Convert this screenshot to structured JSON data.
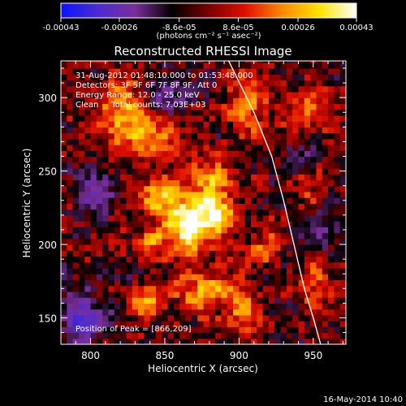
{
  "chart_data": {
    "type": "heatmap",
    "title": "Reconstructed RHESSI Image",
    "xlabel": "Heliocentric X (arcsec)",
    "ylabel": "Heliocentric Y (arcsec)",
    "xlim": [
      780,
      972
    ],
    "ylim": [
      132,
      325
    ],
    "x_ticks": [
      "800",
      "850",
      "900",
      "950"
    ],
    "y_ticks": [
      "150",
      "200",
      "250",
      "300"
    ],
    "colorbar": {
      "range": [
        -0.00043,
        0.00043
      ],
      "tick_labels": [
        "-0.00043",
        "-0.00026",
        "-8.6e-05",
        "8.6e-05",
        "0.00026",
        "0.00043"
      ],
      "unit_label": "(photons cm⁻² s⁻¹ asec⁻²)",
      "colors": [
        "#0a14ff",
        "#4b2bd0",
        "#7a2f9a",
        "#000000",
        "#7a0000",
        "#e01000",
        "#ff8a00",
        "#ffe400",
        "#ffffff"
      ]
    },
    "annotations": [
      "31-Aug-2012 01:48:10.000 to 01:53:48.000",
      "Detectors: 3F 5F 6F 7F 8F 9F, Att 0",
      "Energy Range: 12.0 - 25.0 keV",
      "Clean     Total counts: 7.03E+03"
    ],
    "peak_label": "Position of Peak = [866,209]",
    "peak": [
      866,
      209
    ],
    "limb_curve": [
      [
        893,
        325
      ],
      [
        910,
        290
      ],
      [
        922,
        260
      ],
      [
        930,
        230
      ],
      [
        937,
        200
      ],
      [
        944,
        170
      ],
      [
        950,
        150
      ],
      [
        955,
        132
      ]
    ],
    "sources": [
      {
        "x": 868,
        "y": 212,
        "sx": 10,
        "sy": 11,
        "amp": 1.0
      },
      {
        "x": 885,
        "y": 222,
        "sx": 9,
        "sy": 9,
        "amp": 0.7
      },
      {
        "x": 848,
        "y": 232,
        "sx": 11,
        "sy": 9,
        "amp": 0.65
      },
      {
        "x": 882,
        "y": 245,
        "sx": 10,
        "sy": 10,
        "amp": 0.6
      },
      {
        "x": 838,
        "y": 272,
        "sx": 13,
        "sy": 11,
        "amp": 0.5
      },
      {
        "x": 820,
        "y": 292,
        "sx": 14,
        "sy": 14,
        "amp": 0.55
      },
      {
        "x": 875,
        "y": 168,
        "sx": 13,
        "sy": 10,
        "amp": 0.55
      },
      {
        "x": 838,
        "y": 162,
        "sx": 9,
        "sy": 8,
        "amp": 0.45
      },
      {
        "x": 840,
        "y": 200,
        "sx": 9,
        "sy": 9,
        "amp": 0.5
      },
      {
        "x": 905,
        "y": 298,
        "sx": 9,
        "sy": 18,
        "amp": 0.45
      },
      {
        "x": 918,
        "y": 198,
        "sx": 8,
        "sy": 10,
        "amp": 0.4
      },
      {
        "x": 905,
        "y": 155,
        "sx": 9,
        "sy": 12,
        "amp": 0.4
      },
      {
        "x": 955,
        "y": 175,
        "sx": 10,
        "sy": 14,
        "amp": 0.25
      },
      {
        "x": 952,
        "y": 245,
        "sx": 10,
        "sy": 12,
        "amp": 0.25
      },
      {
        "x": 940,
        "y": 292,
        "sx": 12,
        "sy": 12,
        "amp": 0.3
      }
    ],
    "negative_regions": [
      {
        "x": 795,
        "y": 148,
        "sx": 10,
        "sy": 10,
        "amp": 0.55
      },
      {
        "x": 850,
        "y": 300,
        "sx": 10,
        "sy": 8,
        "amp": 0.45
      },
      {
        "x": 800,
        "y": 235,
        "sx": 9,
        "sy": 8,
        "amp": 0.4
      },
      {
        "x": 955,
        "y": 210,
        "sx": 10,
        "sy": 10,
        "amp": 0.3
      },
      {
        "x": 945,
        "y": 258,
        "sx": 8,
        "sy": 8,
        "amp": 0.3
      }
    ],
    "grid": false
  },
  "footer": {
    "date_stamp": "16-May-2014 10:40"
  }
}
